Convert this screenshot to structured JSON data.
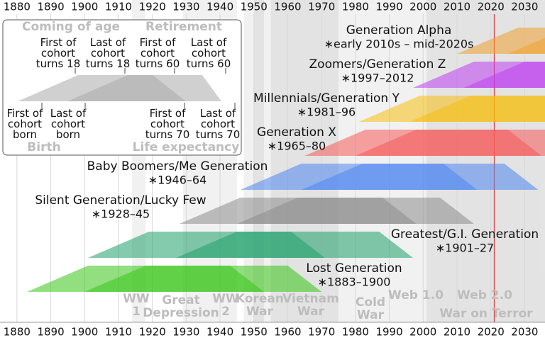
{
  "chart_data": {
    "type": "timeline",
    "xlim": [
      1875,
      2036
    ],
    "xticks": [
      1880,
      1890,
      1900,
      1910,
      1920,
      1930,
      1940,
      1950,
      1960,
      1970,
      1980,
      1990,
      2000,
      2010,
      2020,
      2030
    ],
    "reference_line": {
      "value": 2021,
      "color": "#e03c3c"
    },
    "generations": [
      {
        "name": "Generation Alpha",
        "years_label": "∗early 2010s – mid-2020s",
        "start": 2010,
        "end": 2025,
        "color": "#f0a030"
      },
      {
        "name": "Zoomers/Generation Z",
        "years_label": "∗1997–2012",
        "start": 1997,
        "end": 2012,
        "color": "#c040f0"
      },
      {
        "name": "Millennials/Generation Y",
        "years_label": "∗1981–96",
        "start": 1981,
        "end": 1996,
        "color": "#f5c010"
      },
      {
        "name": "Generation X",
        "years_label": "∗1965–80",
        "start": 1965,
        "end": 1980,
        "color": "#f55a5a"
      },
      {
        "name": "Baby Boomers/Me Generation",
        "years_label": "∗1946–64",
        "start": 1946,
        "end": 1964,
        "color": "#4f86f0"
      },
      {
        "name": "Silent Generation/Lucky Few",
        "years_label": "∗1928–45",
        "start": 1928,
        "end": 1945,
        "color": "#8c8c8c"
      },
      {
        "name": "Greatest/G.I. Generation",
        "years_label": "∗1901–27",
        "start": 1901,
        "end": 1927,
        "color": "#1fa06a"
      },
      {
        "name": "Lost Generation",
        "years_label": "∗1883–1900",
        "start": 1883,
        "end": 1900,
        "color": "#38c418"
      }
    ],
    "events": [
      {
        "lines": [
          "WW",
          "1"
        ],
        "start": 1914,
        "end": 1918
      },
      {
        "lines": [
          "Great",
          "Depression"
        ],
        "start": 1929,
        "end": 1939
      },
      {
        "lines": [
          "WW",
          "2"
        ],
        "start": 1939,
        "end": 1945
      },
      {
        "lines": [
          "Korean",
          "War"
        ],
        "start": 1950,
        "end": 1953
      },
      {
        "lines": [
          "Vietnam",
          "War"
        ],
        "start": 1955,
        "end": 1975
      },
      {
        "lines": [
          "Cold",
          "War"
        ],
        "start": 1947,
        "end": 1991
      },
      {
        "lines": [
          "Web 1.0"
        ],
        "start": 1991,
        "end": 2004
      },
      {
        "lines": [
          "Web 2.0"
        ],
        "start": 2004,
        "end": 2036
      },
      {
        "lines": [
          "War on Terror"
        ],
        "start": 2001,
        "end": 2036
      }
    ],
    "legend": {
      "coming_of_age": "Coming of age",
      "retirement": "Retirement",
      "birth": "Birth",
      "life_expectancy": "Life expectancy",
      "top_markers": [
        {
          "lines": [
            "First of",
            "cohort",
            "turns"
          ],
          "age": 18
        },
        {
          "lines": [
            "Last of",
            "cohort",
            "turns"
          ],
          "age": 18
        },
        {
          "lines": [
            "First of",
            "cohort",
            "turns"
          ],
          "age": 60
        },
        {
          "lines": [
            "Last of",
            "cohort",
            "turns"
          ],
          "age": 60
        }
      ],
      "bottom_markers": [
        {
          "lines": [
            "First of",
            "cohort",
            "born"
          ]
        },
        {
          "lines": [
            "Last of",
            "cohort",
            "born"
          ]
        },
        {
          "lines": [
            "First of",
            "cohort",
            "turns"
          ],
          "age": 70
        },
        {
          "lines": [
            "Last of",
            "cohort",
            "turns"
          ],
          "age": 70
        }
      ]
    }
  }
}
